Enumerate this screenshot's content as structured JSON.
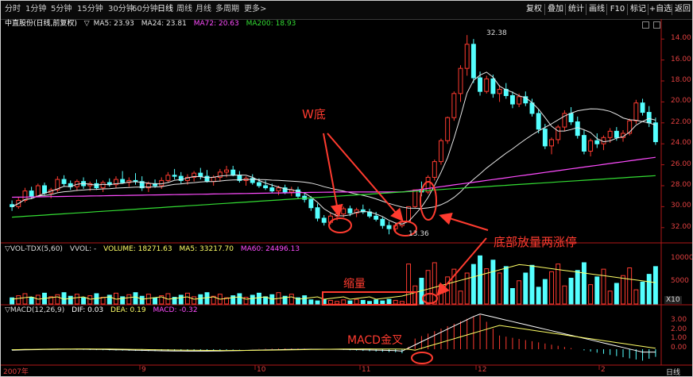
{
  "toolbar": {
    "timeframes": [
      "分时",
      "1分钟",
      "5分钟",
      "15分钟",
      "30分钟",
      "60分钟",
      "日线",
      "周线",
      "月线",
      "多周期",
      "更多>"
    ],
    "active_timeframe": "日线",
    "buttons": [
      "复权",
      "叠加",
      "统计",
      "画线",
      "F10",
      "标记",
      "+自选",
      "返回"
    ]
  },
  "main_panel": {
    "stock_name": "中直股份(日线,前复权)",
    "ma_label": "▽",
    "indicators": [
      {
        "name": "MA5",
        "value": "23.93",
        "color": "#e6e6e6"
      },
      {
        "name": "MA24",
        "value": "23.81",
        "color": "#e6e6e6"
      },
      {
        "name": "MA72",
        "value": "20.63",
        "color": "#ff4cff"
      },
      {
        "name": "MA200",
        "value": "18.93",
        "color": "#33dd33"
      }
    ],
    "price_ticks": [
      "32.00",
      "30.00",
      "28.00",
      "26.00",
      "24.00",
      "22.00",
      "20.00",
      "18.00",
      "16.00",
      "14.00"
    ],
    "high_label": "32.38",
    "low_label": "13.36"
  },
  "volume_panel": {
    "title": "▽VOL-TDX(5,60)",
    "vvol": "VVOL: -",
    "volume": "VOLUME: 18271.63",
    "ma5": "MA5: 33217.70",
    "ma60": "MA60: 24496.13",
    "ticks": [
      "10000",
      "5000"
    ],
    "unit": "X10"
  },
  "macd_panel": {
    "title": "▽MACD(12,26,9)",
    "dif": "DIF: 0.03",
    "dea": "DEA: 0.19",
    "macd": "MACD: -0.32",
    "ticks": [
      "3.00",
      "2.00",
      "1.00",
      "0.00"
    ]
  },
  "time_axis": {
    "labels": [
      "2007年",
      "9",
      "10",
      "11",
      "12",
      "2"
    ],
    "period": "日线"
  },
  "annotations": {
    "w_bottom": "W底",
    "volume_limit_up": "底部放量两涨停",
    "shrink_volume": "缩量",
    "macd_golden_cross": "MACD金叉"
  },
  "colors": {
    "up": "#ff3b30",
    "down": "#54ffff",
    "annotation": "#ff3b2f",
    "axis": "#b01818"
  },
  "chart_data": {
    "type": "candlestick",
    "title": "中直股份(日线,前复权)",
    "ylim": [
      13,
      33
    ],
    "price_ticks": [
      14,
      16,
      18,
      20,
      22,
      24,
      26,
      28,
      30,
      32
    ],
    "candles_ohlc": [
      [
        16.2,
        16.6,
        15.6,
        16.0
      ],
      [
        16.0,
        16.9,
        15.8,
        16.6
      ],
      [
        16.6,
        17.8,
        16.4,
        17.5
      ],
      [
        17.5,
        17.9,
        16.8,
        17.0
      ],
      [
        17.0,
        18.2,
        16.9,
        18.0
      ],
      [
        18.0,
        18.3,
        17.1,
        17.3
      ],
      [
        17.3,
        17.8,
        16.8,
        17.6
      ],
      [
        17.6,
        18.9,
        17.4,
        18.6
      ],
      [
        18.6,
        19.0,
        17.9,
        18.2
      ],
      [
        18.2,
        18.5,
        17.6,
        17.9
      ],
      [
        17.9,
        18.6,
        17.5,
        18.4
      ],
      [
        18.4,
        18.8,
        17.7,
        18.0
      ],
      [
        18.0,
        18.4,
        17.5,
        18.2
      ],
      [
        18.2,
        18.6,
        17.6,
        17.8
      ],
      [
        17.8,
        18.5,
        17.4,
        18.3
      ],
      [
        18.3,
        18.7,
        17.9,
        18.1
      ],
      [
        18.1,
        18.9,
        17.8,
        18.6
      ],
      [
        18.6,
        19.4,
        18.2,
        18.3
      ],
      [
        18.3,
        18.8,
        17.9,
        18.5
      ],
      [
        18.5,
        19.2,
        18.1,
        18.4
      ],
      [
        18.4,
        18.9,
        17.5,
        17.8
      ],
      [
        17.8,
        18.4,
        17.4,
        18.2
      ],
      [
        18.2,
        18.6,
        17.8,
        18.0
      ],
      [
        18.0,
        18.8,
        17.7,
        18.5
      ],
      [
        18.5,
        19.3,
        18.3,
        19.0
      ],
      [
        19.0,
        19.6,
        18.6,
        18.9
      ],
      [
        18.9,
        19.3,
        18.2,
        18.5
      ],
      [
        18.5,
        19.1,
        18.1,
        18.8
      ],
      [
        18.8,
        19.4,
        18.4,
        19.2
      ],
      [
        19.2,
        19.7,
        18.6,
        18.9
      ],
      [
        18.9,
        19.5,
        18.3,
        18.4
      ],
      [
        18.4,
        19.0,
        18.0,
        18.8
      ],
      [
        18.8,
        19.6,
        18.4,
        19.3
      ],
      [
        19.3,
        19.9,
        18.8,
        19.5
      ],
      [
        19.5,
        19.9,
        18.9,
        19.0
      ],
      [
        19.0,
        19.4,
        18.3,
        18.5
      ],
      [
        18.5,
        18.9,
        18.0,
        18.7
      ],
      [
        18.7,
        19.1,
        18.1,
        18.3
      ],
      [
        18.3,
        18.7,
        17.8,
        18.0
      ],
      [
        18.0,
        18.5,
        17.6,
        17.8
      ],
      [
        17.8,
        18.2,
        17.3,
        17.5
      ],
      [
        17.5,
        18.0,
        17.1,
        17.8
      ],
      [
        17.8,
        18.1,
        17.2,
        17.4
      ],
      [
        17.4,
        17.9,
        17.0,
        17.6
      ],
      [
        17.6,
        17.9,
        16.8,
        17.0
      ],
      [
        17.0,
        17.4,
        16.4,
        16.7
      ],
      [
        16.7,
        17.0,
        15.6,
        15.9
      ],
      [
        15.9,
        16.3,
        14.6,
        14.9
      ],
      [
        14.9,
        15.2,
        14.2,
        14.5
      ],
      [
        14.5,
        15.4,
        14.3,
        15.1
      ],
      [
        15.1,
        15.6,
        14.7,
        15.3
      ],
      [
        15.3,
        16.0,
        15.0,
        15.8
      ],
      [
        15.8,
        16.1,
        15.1,
        15.4
      ],
      [
        15.4,
        15.9,
        15.0,
        15.7
      ],
      [
        15.7,
        16.2,
        15.3,
        15.5
      ],
      [
        15.5,
        15.8,
        14.9,
        15.1
      ],
      [
        15.1,
        15.5,
        14.6,
        14.8
      ],
      [
        14.8,
        15.0,
        13.9,
        14.2
      ],
      [
        14.2,
        14.6,
        13.36,
        13.9
      ],
      [
        13.9,
        14.4,
        13.6,
        14.2
      ],
      [
        14.2,
        14.8,
        14.0,
        14.6
      ],
      [
        14.6,
        16.0,
        14.5,
        16.0
      ],
      [
        16.0,
        17.6,
        15.9,
        17.6
      ],
      [
        17.6,
        18.4,
        17.0,
        17.4
      ],
      [
        17.4,
        19.0,
        17.2,
        18.8
      ],
      [
        18.8,
        20.5,
        18.5,
        20.3
      ],
      [
        20.3,
        22.5,
        20.0,
        22.3
      ],
      [
        22.3,
        24.6,
        22.0,
        24.5
      ],
      [
        24.5,
        27.0,
        24.2,
        26.8
      ],
      [
        26.8,
        29.5,
        26.0,
        29.2
      ],
      [
        29.2,
        32.38,
        28.5,
        31.5
      ],
      [
        31.5,
        32.0,
        27.8,
        28.3
      ],
      [
        28.3,
        28.9,
        26.6,
        27.0
      ],
      [
        27.0,
        28.5,
        26.8,
        28.2
      ],
      [
        28.2,
        28.6,
        26.4,
        26.8
      ],
      [
        26.8,
        27.6,
        26.0,
        27.2
      ],
      [
        27.2,
        27.8,
        26.3,
        26.6
      ],
      [
        26.6,
        27.0,
        25.4,
        25.8
      ],
      [
        25.8,
        26.8,
        25.5,
        26.5
      ],
      [
        26.5,
        27.0,
        25.6,
        25.9
      ],
      [
        25.9,
        26.3,
        24.6,
        24.9
      ],
      [
        24.9,
        25.3,
        23.0,
        23.4
      ],
      [
        23.4,
        23.9,
        21.5,
        21.8
      ],
      [
        21.8,
        22.6,
        21.0,
        22.4
      ],
      [
        22.4,
        23.8,
        22.0,
        23.6
      ],
      [
        23.6,
        25.2,
        23.2,
        24.9
      ],
      [
        24.9,
        25.5,
        23.8,
        24.1
      ],
      [
        24.1,
        24.6,
        22.5,
        22.8
      ],
      [
        22.8,
        23.3,
        21.0,
        21.3
      ],
      [
        21.3,
        22.5,
        20.8,
        22.3
      ],
      [
        22.3,
        23.0,
        21.6,
        22.0
      ],
      [
        22.0,
        22.8,
        21.4,
        22.6
      ],
      [
        22.6,
        23.5,
        22.1,
        23.2
      ],
      [
        23.2,
        23.6,
        22.3,
        22.6
      ],
      [
        22.6,
        23.3,
        22.2,
        23.0
      ],
      [
        23.0,
        24.4,
        22.8,
        24.2
      ],
      [
        24.2,
        26.2,
        23.9,
        25.9
      ],
      [
        25.9,
        26.3,
        24.7,
        25.0
      ],
      [
        25.0,
        25.6,
        23.6,
        24.0
      ],
      [
        24.0,
        24.5,
        21.9,
        22.2
      ]
    ],
    "ma_series": [
      {
        "name": "MA5",
        "last": 23.93
      },
      {
        "name": "MA24",
        "last": 23.81
      },
      {
        "name": "MA72",
        "last": 20.63
      },
      {
        "name": "MA200",
        "last": 18.93
      }
    ]
  }
}
